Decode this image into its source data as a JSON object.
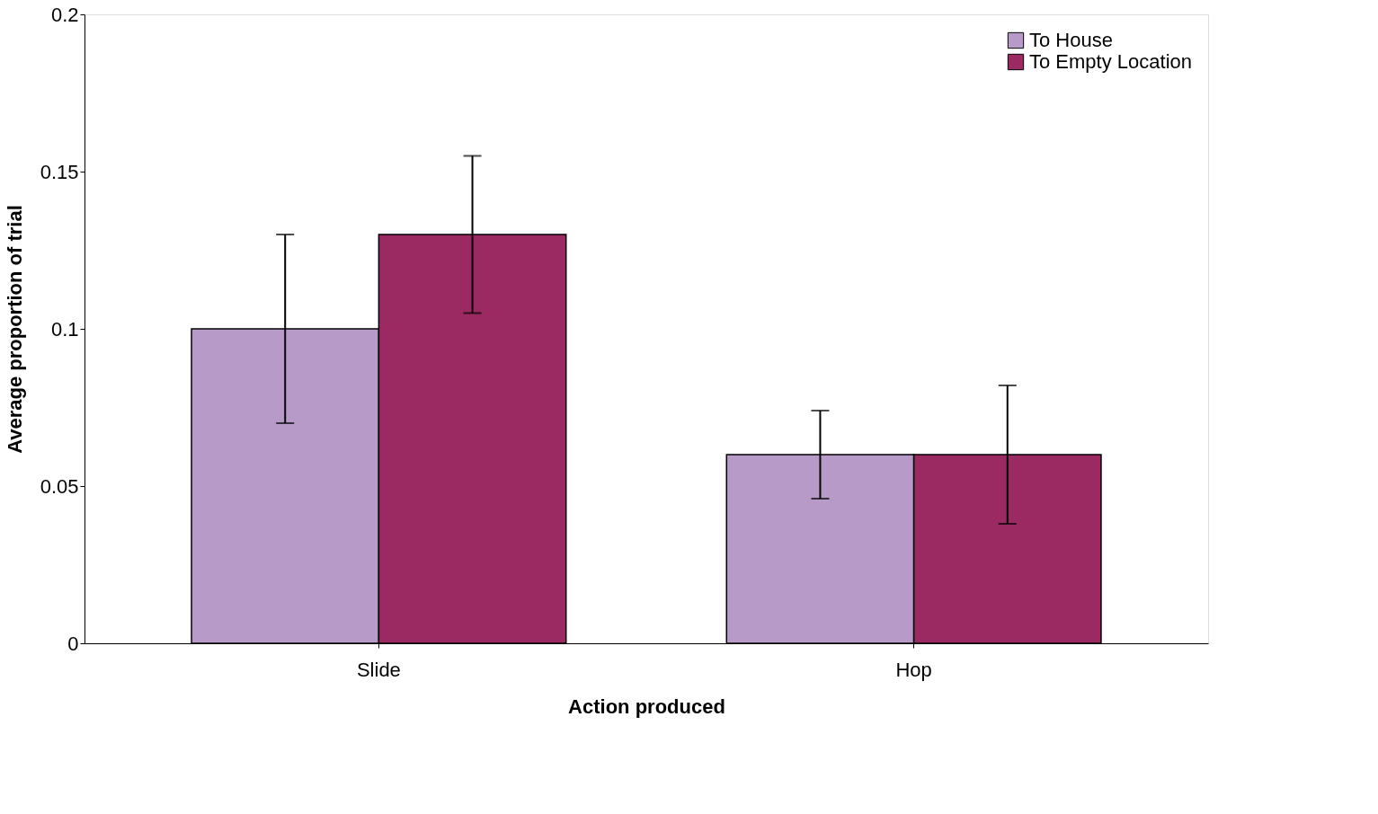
{
  "chart_data": {
    "type": "bar",
    "xlabel": "Action produced",
    "ylabel": "Average proportion of trial",
    "categories": [
      "Slide",
      "Hop"
    ],
    "series": [
      {
        "name": "To House",
        "color": "#b89ac8",
        "values": [
          0.1,
          0.06
        ],
        "errors": [
          0.03,
          [
            0.046,
            0.074
          ]
        ]
      },
      {
        "name": "To Empty Location",
        "color": "#9b2a62",
        "values": [
          0.13,
          0.06
        ],
        "errors": [
          [
            0.105,
            0.155
          ],
          [
            0.038,
            0.082
          ]
        ]
      }
    ],
    "ylim": [
      0,
      0.2
    ],
    "yticks": [
      0,
      0.05,
      0.1,
      0.15,
      0.2
    ],
    "grid": false,
    "legend": "top right"
  }
}
